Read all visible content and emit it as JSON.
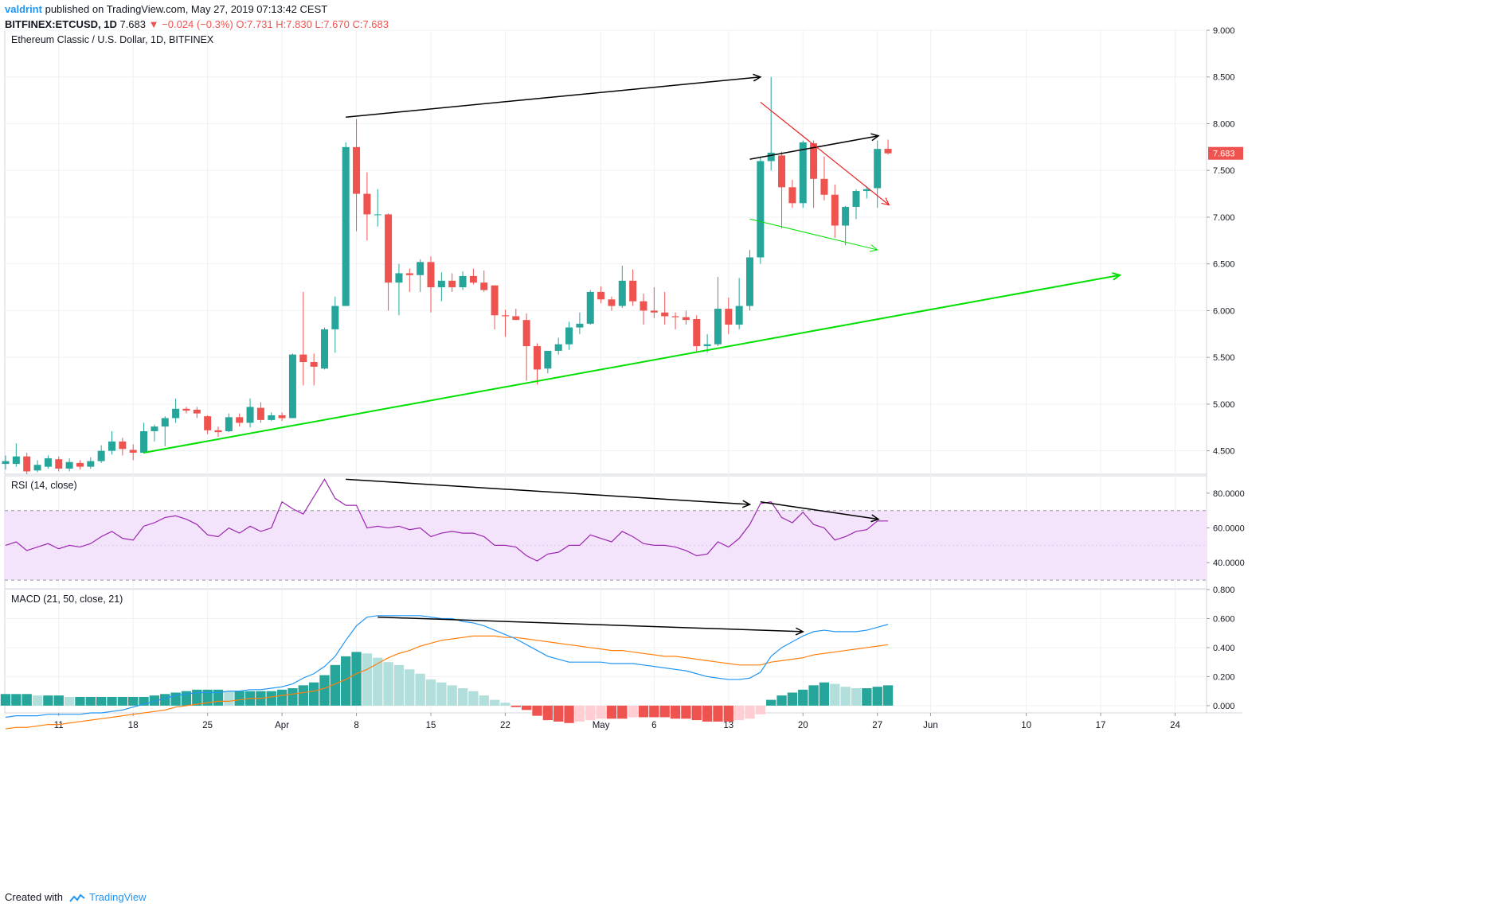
{
  "header": {
    "author": "valdrint",
    "published": "published on TradingView.com, May 27, 2019 07:13:42 CEST",
    "symbol": "BITFINEX:ETCUSD, 1D",
    "last": "7.683",
    "change": "−0.024 (−0.3%)",
    "ohlc_o": "O:7.731",
    "ohlc_h": "H:7.830",
    "ohlc_l": "L:7.670",
    "ohlc_c": "C:7.683"
  },
  "footer": {
    "prefix": "Created with",
    "brand": "TradingView"
  },
  "colors": {
    "up": "#26a69a",
    "down": "#ef5350",
    "macd": "#2196f3",
    "signal": "#ff7f0e",
    "rsi": "#9c27b0",
    "rsi_band": "#f3e3fb",
    "hist_up_strong": "#26a69a",
    "hist_up_weak": "#b2dfdb",
    "hist_down_strong": "#ef5350",
    "hist_down_weak": "#ffcdd2",
    "trend_green": "#00e000",
    "trend_black": "#000000",
    "trend_red": "#ef1f1f"
  },
  "chart_data": [
    {
      "type": "candlestick",
      "title": "Ethereum Classic / U.S. Dollar, 1D, BITFINEX",
      "ylim": [
        4.25,
        9.0
      ],
      "yticks": [
        "9.000",
        "8.500",
        "8.000",
        "7.500",
        "7.000",
        "6.500",
        "6.000",
        "5.500",
        "5.000",
        "4.500"
      ],
      "yticks_values": [
        9.0,
        8.5,
        8.0,
        7.5,
        7.0,
        6.5,
        6.0,
        5.5,
        5.0,
        4.5
      ],
      "last_price_label": "7.683",
      "start_date": "2019-03-06",
      "xticks": [
        {
          "label": "11",
          "day": 5
        },
        {
          "label": "18",
          "day": 12
        },
        {
          "label": "25",
          "day": 19
        },
        {
          "label": "Apr",
          "day": 26
        },
        {
          "label": "8",
          "day": 33
        },
        {
          "label": "15",
          "day": 40
        },
        {
          "label": "22",
          "day": 47
        },
        {
          "label": "May",
          "day": 56
        },
        {
          "label": "6",
          "day": 61
        },
        {
          "label": "13",
          "day": 68
        },
        {
          "label": "20",
          "day": 75
        },
        {
          "label": "27",
          "day": 82
        },
        {
          "label": "Jun",
          "day": 87
        },
        {
          "label": "10",
          "day": 96
        },
        {
          "label": "17",
          "day": 103
        },
        {
          "label": "24",
          "day": 110
        }
      ],
      "ohlc": [
        [
          4.36,
          4.45,
          4.3,
          4.39
        ],
        [
          4.36,
          4.58,
          4.33,
          4.44
        ],
        [
          4.44,
          4.48,
          4.25,
          4.28
        ],
        [
          4.29,
          4.4,
          4.27,
          4.35
        ],
        [
          4.33,
          4.45,
          4.31,
          4.42
        ],
        [
          4.41,
          4.44,
          4.28,
          4.31
        ],
        [
          4.31,
          4.42,
          4.28,
          4.38
        ],
        [
          4.37,
          4.4,
          4.3,
          4.33
        ],
        [
          4.33,
          4.43,
          4.31,
          4.39
        ],
        [
          4.39,
          4.56,
          4.37,
          4.5
        ],
        [
          4.5,
          4.71,
          4.46,
          4.6
        ],
        [
          4.6,
          4.64,
          4.45,
          4.52
        ],
        [
          4.51,
          4.57,
          4.4,
          4.48
        ],
        [
          4.48,
          4.8,
          4.47,
          4.71
        ],
        [
          4.71,
          4.78,
          4.6,
          4.76
        ],
        [
          4.76,
          4.87,
          4.55,
          4.85
        ],
        [
          4.85,
          5.06,
          4.8,
          4.95
        ],
        [
          4.95,
          4.97,
          4.9,
          4.93
        ],
        [
          4.94,
          4.97,
          4.85,
          4.9
        ],
        [
          4.87,
          4.88,
          4.68,
          4.72
        ],
        [
          4.72,
          4.76,
          4.65,
          4.7
        ],
        [
          4.71,
          4.9,
          4.7,
          4.86
        ],
        [
          4.86,
          4.9,
          4.76,
          4.8
        ],
        [
          4.8,
          5.06,
          4.75,
          4.97
        ],
        [
          4.96,
          5.02,
          4.8,
          4.83
        ],
        [
          4.83,
          4.91,
          4.82,
          4.88
        ],
        [
          4.88,
          4.91,
          4.82,
          4.85
        ],
        [
          4.85,
          5.54,
          4.85,
          5.53
        ],
        [
          5.53,
          6.2,
          5.2,
          5.45
        ],
        [
          5.45,
          5.54,
          5.2,
          5.4
        ],
        [
          5.38,
          5.82,
          5.37,
          5.8
        ],
        [
          5.8,
          6.15,
          5.55,
          6.05
        ],
        [
          6.05,
          7.8,
          6.05,
          7.75
        ],
        [
          7.75,
          8.05,
          6.85,
          7.25
        ],
        [
          7.25,
          7.48,
          6.75,
          7.03
        ],
        [
          7.03,
          7.3,
          6.9,
          7.03
        ],
        [
          7.03,
          7.04,
          6.0,
          6.3
        ],
        [
          6.3,
          6.5,
          5.95,
          6.4
        ],
        [
          6.4,
          6.45,
          6.2,
          6.38
        ],
        [
          6.38,
          6.55,
          6.2,
          6.52
        ],
        [
          6.52,
          6.58,
          5.98,
          6.25
        ],
        [
          6.25,
          6.41,
          6.1,
          6.32
        ],
        [
          6.32,
          6.4,
          6.2,
          6.25
        ],
        [
          6.25,
          6.42,
          6.22,
          6.37
        ],
        [
          6.37,
          6.45,
          6.28,
          6.3
        ],
        [
          6.3,
          6.43,
          6.2,
          6.22
        ],
        [
          6.27,
          6.27,
          5.8,
          5.95
        ],
        [
          5.95,
          6.01,
          5.72,
          5.94
        ],
        [
          5.94,
          6.02,
          5.9,
          5.9
        ],
        [
          5.9,
          5.97,
          5.25,
          5.62
        ],
        [
          5.62,
          5.65,
          5.21,
          5.37
        ],
        [
          5.38,
          5.57,
          5.33,
          5.57
        ],
        [
          5.57,
          5.71,
          5.53,
          5.64
        ],
        [
          5.64,
          5.88,
          5.58,
          5.82
        ],
        [
          5.82,
          5.98,
          5.75,
          5.86
        ],
        [
          5.86,
          6.22,
          5.85,
          6.2
        ],
        [
          6.2,
          6.26,
          6.08,
          6.12
        ],
        [
          6.12,
          6.15,
          6.0,
          6.05
        ],
        [
          6.05,
          6.48,
          6.03,
          6.32
        ],
        [
          6.32,
          6.44,
          6.05,
          6.1
        ],
        [
          6.1,
          6.18,
          5.85,
          6.0
        ],
        [
          6.0,
          6.25,
          5.92,
          5.98
        ],
        [
          5.98,
          6.2,
          5.85,
          5.94
        ],
        [
          5.94,
          5.98,
          5.8,
          5.93
        ],
        [
          5.93,
          6.0,
          5.85,
          5.9
        ],
        [
          5.91,
          5.95,
          5.55,
          5.62
        ],
        [
          5.62,
          5.75,
          5.55,
          5.64
        ],
        [
          5.64,
          6.36,
          5.62,
          6.02
        ],
        [
          6.02,
          6.14,
          5.75,
          5.85
        ],
        [
          5.85,
          6.35,
          5.8,
          6.05
        ],
        [
          6.05,
          6.65,
          6.0,
          6.57
        ],
        [
          6.57,
          7.65,
          6.5,
          7.6
        ],
        [
          7.6,
          8.5,
          7.5,
          7.69
        ],
        [
          7.66,
          7.7,
          6.88,
          7.32
        ],
        [
          7.32,
          7.4,
          7.1,
          7.15
        ],
        [
          7.15,
          7.82,
          7.1,
          7.8
        ],
        [
          7.79,
          7.82,
          7.1,
          7.41
        ],
        [
          7.41,
          7.65,
          7.18,
          7.24
        ],
        [
          7.24,
          7.35,
          6.78,
          6.91
        ],
        [
          6.91,
          7.12,
          6.7,
          7.11
        ],
        [
          7.11,
          7.3,
          6.98,
          7.28
        ],
        [
          7.28,
          7.33,
          7.2,
          7.3
        ],
        [
          7.31,
          7.82,
          7.1,
          7.73
        ],
        [
          7.731,
          7.83,
          7.67,
          7.683
        ]
      ]
    },
    {
      "type": "line",
      "title": "RSI (14, close)",
      "ylim": [
        25,
        90
      ],
      "yticks": [
        "80.0000",
        "60.0000",
        "40.0000"
      ],
      "yticks_values": [
        80,
        60,
        40
      ],
      "band": [
        30,
        70
      ],
      "values": [
        50,
        52,
        47,
        49,
        51,
        48,
        50,
        49,
        51,
        55,
        58,
        54,
        53,
        61,
        63,
        66,
        67,
        65,
        62,
        56,
        55,
        60,
        57,
        61,
        58,
        60,
        75,
        71,
        68,
        78,
        88,
        77,
        73,
        73,
        60,
        61,
        60,
        61,
        59,
        60,
        55,
        57,
        58,
        57,
        57,
        55,
        50,
        50,
        49,
        44,
        41,
        45,
        46,
        50,
        50,
        56,
        54,
        52,
        58,
        55,
        51,
        50,
        50,
        49,
        47,
        44,
        45,
        52,
        49,
        54,
        62,
        74,
        75,
        66,
        63,
        69,
        62,
        60,
        53,
        55,
        58,
        59,
        64,
        64
      ]
    },
    {
      "type": "bar+line",
      "title": "MACD (21, 50, close, 21)",
      "ylim": [
        -0.05,
        0.8
      ],
      "yticks": [
        "0.800",
        "0.600",
        "0.400",
        "0.200",
        "0.000"
      ],
      "yticks_values": [
        0.8,
        0.6,
        0.4,
        0.2,
        0.0
      ],
      "macd": [
        -0.08,
        -0.07,
        -0.07,
        -0.07,
        -0.06,
        -0.06,
        -0.06,
        -0.06,
        -0.05,
        -0.05,
        -0.04,
        -0.03,
        -0.01,
        0.01,
        0.03,
        0.05,
        0.07,
        0.08,
        0.09,
        0.09,
        0.09,
        0.1,
        0.1,
        0.11,
        0.11,
        0.12,
        0.13,
        0.15,
        0.19,
        0.22,
        0.27,
        0.34,
        0.45,
        0.55,
        0.61,
        0.62,
        0.62,
        0.62,
        0.62,
        0.62,
        0.61,
        0.6,
        0.6,
        0.58,
        0.57,
        0.55,
        0.52,
        0.49,
        0.46,
        0.42,
        0.38,
        0.34,
        0.32,
        0.3,
        0.3,
        0.3,
        0.3,
        0.29,
        0.29,
        0.29,
        0.28,
        0.27,
        0.26,
        0.25,
        0.24,
        0.22,
        0.2,
        0.19,
        0.18,
        0.18,
        0.19,
        0.23,
        0.34,
        0.4,
        0.44,
        0.48,
        0.51,
        0.52,
        0.51,
        0.51,
        0.51,
        0.52,
        0.54,
        0.56
      ],
      "signal": [
        -0.16,
        -0.15,
        -0.15,
        -0.14,
        -0.13,
        -0.13,
        -0.12,
        -0.11,
        -0.1,
        -0.09,
        -0.08,
        -0.07,
        -0.06,
        -0.05,
        -0.04,
        -0.03,
        -0.01,
        0.0,
        0.01,
        0.02,
        0.03,
        0.03,
        0.04,
        0.05,
        0.05,
        0.06,
        0.07,
        0.08,
        0.09,
        0.1,
        0.12,
        0.15,
        0.18,
        0.22,
        0.25,
        0.29,
        0.33,
        0.36,
        0.38,
        0.41,
        0.43,
        0.45,
        0.46,
        0.47,
        0.48,
        0.48,
        0.48,
        0.47,
        0.47,
        0.46,
        0.45,
        0.44,
        0.43,
        0.42,
        0.41,
        0.4,
        0.39,
        0.38,
        0.38,
        0.37,
        0.36,
        0.35,
        0.34,
        0.34,
        0.33,
        0.32,
        0.31,
        0.3,
        0.29,
        0.28,
        0.28,
        0.28,
        0.3,
        0.31,
        0.32,
        0.33,
        0.35,
        0.36,
        0.37,
        0.38,
        0.39,
        0.4,
        0.41,
        0.42
      ],
      "hist": [
        0.08,
        0.08,
        0.08,
        0.07,
        0.07,
        0.07,
        0.06,
        0.06,
        0.06,
        0.06,
        0.06,
        0.06,
        0.06,
        0.06,
        0.07,
        0.08,
        0.09,
        0.1,
        0.11,
        0.11,
        0.11,
        0.1,
        0.1,
        0.1,
        0.1,
        0.1,
        0.11,
        0.12,
        0.14,
        0.16,
        0.21,
        0.28,
        0.34,
        0.37,
        0.36,
        0.33,
        0.3,
        0.28,
        0.25,
        0.22,
        0.18,
        0.16,
        0.14,
        0.12,
        0.1,
        0.07,
        0.04,
        0.02,
        -0.01,
        -0.03,
        -0.07,
        -0.1,
        -0.11,
        -0.12,
        -0.11,
        -0.1,
        -0.09,
        -0.09,
        -0.09,
        -0.08,
        -0.08,
        -0.08,
        -0.08,
        -0.09,
        -0.09,
        -0.1,
        -0.11,
        -0.11,
        -0.11,
        -0.1,
        -0.09,
        -0.06,
        0.04,
        0.07,
        0.09,
        0.11,
        0.14,
        0.16,
        0.15,
        0.13,
        0.12,
        0.12,
        0.13,
        0.14
      ]
    }
  ]
}
